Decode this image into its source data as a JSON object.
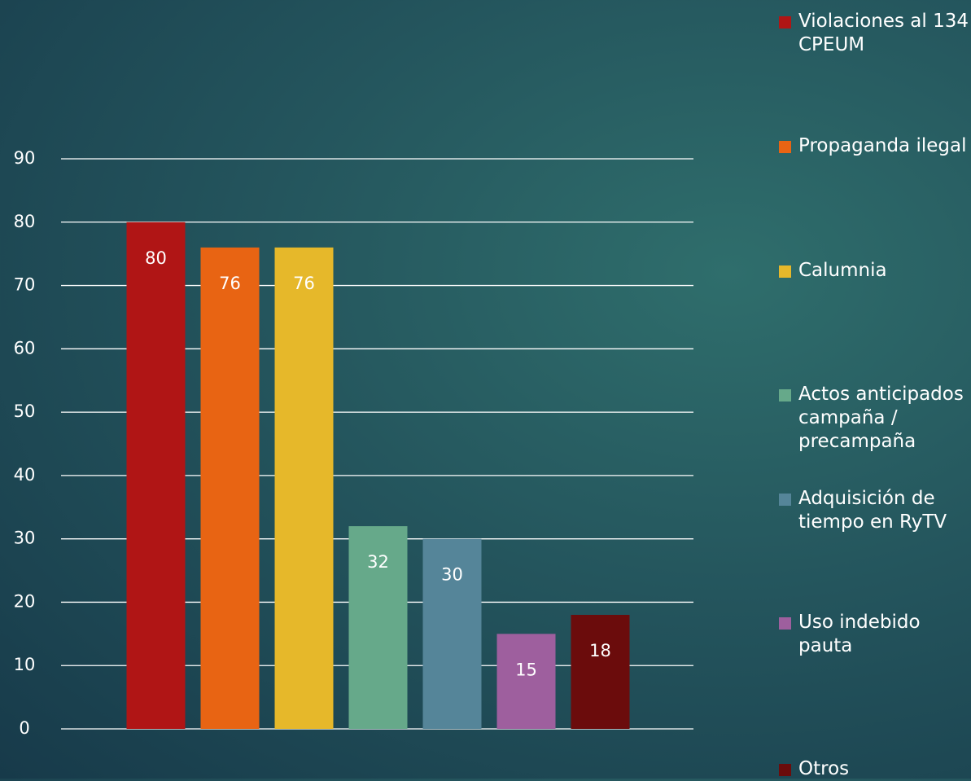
{
  "chart_data": {
    "type": "bar",
    "series": [
      {
        "name": "Violaciones al 134 CPEUM",
        "color": "#b01515",
        "values": [
          80
        ]
      },
      {
        "name": "Propaganda ilegal",
        "color": "#e86413",
        "values": [
          76
        ]
      },
      {
        "name": "Calumnia",
        "color": "#e6b82a",
        "values": [
          76
        ]
      },
      {
        "name": "Actos anticipados campaña / precampaña",
        "color": "#66a98a",
        "values": [
          32
        ]
      },
      {
        "name": "Adquisición de tiempo en RyTV",
        "color": "#558599",
        "values": [
          30
        ]
      },
      {
        "name": "Uso indebido pauta",
        "color": "#9e5f9e",
        "values": [
          15
        ]
      },
      {
        "name": "Otros",
        "color": "#6b0c0c",
        "values": [
          18
        ]
      }
    ],
    "ylim": [
      0,
      90
    ],
    "yticks": [
      0,
      10,
      20,
      30,
      40,
      50,
      60,
      70,
      80,
      90
    ],
    "grid": true,
    "legend": "right"
  }
}
